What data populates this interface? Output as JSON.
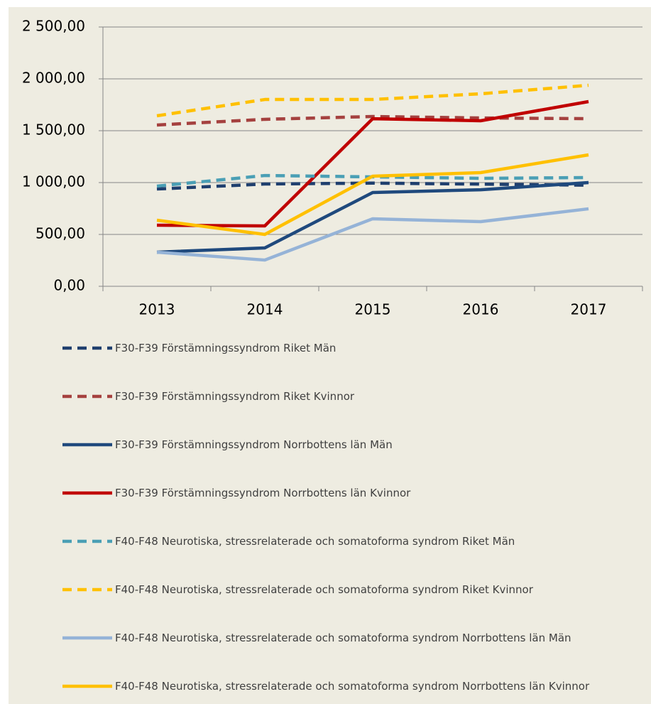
{
  "chart_data": {
    "type": "line",
    "categories": [
      "2013",
      "2014",
      "2015",
      "2016",
      "2017"
    ],
    "ylim": [
      0,
      2500
    ],
    "yticks": [
      {
        "value": 0,
        "label": "0,00"
      },
      {
        "value": 500,
        "label": "500,00"
      },
      {
        "value": 1000,
        "label": "1 000,00"
      },
      {
        "value": 1500,
        "label": "1 500,00"
      },
      {
        "value": 2000,
        "label": "2 000,00"
      },
      {
        "value": 2500,
        "label": "2 500,00"
      }
    ],
    "grid": true,
    "legend": "bottom",
    "series": [
      {
        "name": "F30-F39 Förstämningssyndrom Riket Män",
        "color": "#1f3f6e",
        "dashed": true,
        "values": [
          938,
          986,
          995,
          985,
          975
        ]
      },
      {
        "name": "F30-F39 Förstämningssyndrom Riket Kvinnor",
        "color": "#a5413f",
        "dashed": true,
        "values": [
          1555,
          1610,
          1637,
          1623,
          1616
        ]
      },
      {
        "name": "F30-F39 Förstämningssyndrom Norrbottens län Män",
        "color": "#1f497d",
        "dashed": false,
        "values": [
          329,
          370,
          904,
          931,
          1000
        ]
      },
      {
        "name": "F30-F39 Förstämningssyndrom Norrbottens län Kvinnor",
        "color": "#c00000",
        "dashed": false,
        "values": [
          589,
          582,
          1616,
          1596,
          1781
        ]
      },
      {
        "name": "F40-F48 Neurotiska, stressrelaterade och somatoforma syndrom Riket Män",
        "color": "#4a9fb5",
        "dashed": true,
        "values": [
          966,
          1068,
          1055,
          1041,
          1048
        ]
      },
      {
        "name": "F40-F48 Neurotiska, stressrelaterade och somatoforma syndrom Riket Kvinnor",
        "color": "#ffc000",
        "dashed": true,
        "values": [
          1644,
          1801,
          1801,
          1856,
          1938
        ]
      },
      {
        "name": "F40-F48 Neurotiska, stressrelaterade och somatoforma syndrom Norrbottens län Män",
        "color": "#95b3d7",
        "dashed": false,
        "values": [
          329,
          253,
          651,
          623,
          747
        ]
      },
      {
        "name": "F40-F48 Neurotiska, stressrelaterade och somatoforma syndrom Norrbottens län Kvinnor",
        "color": "#ffc000",
        "dashed": false,
        "values": [
          637,
          500,
          1062,
          1096,
          1267
        ]
      }
    ]
  }
}
